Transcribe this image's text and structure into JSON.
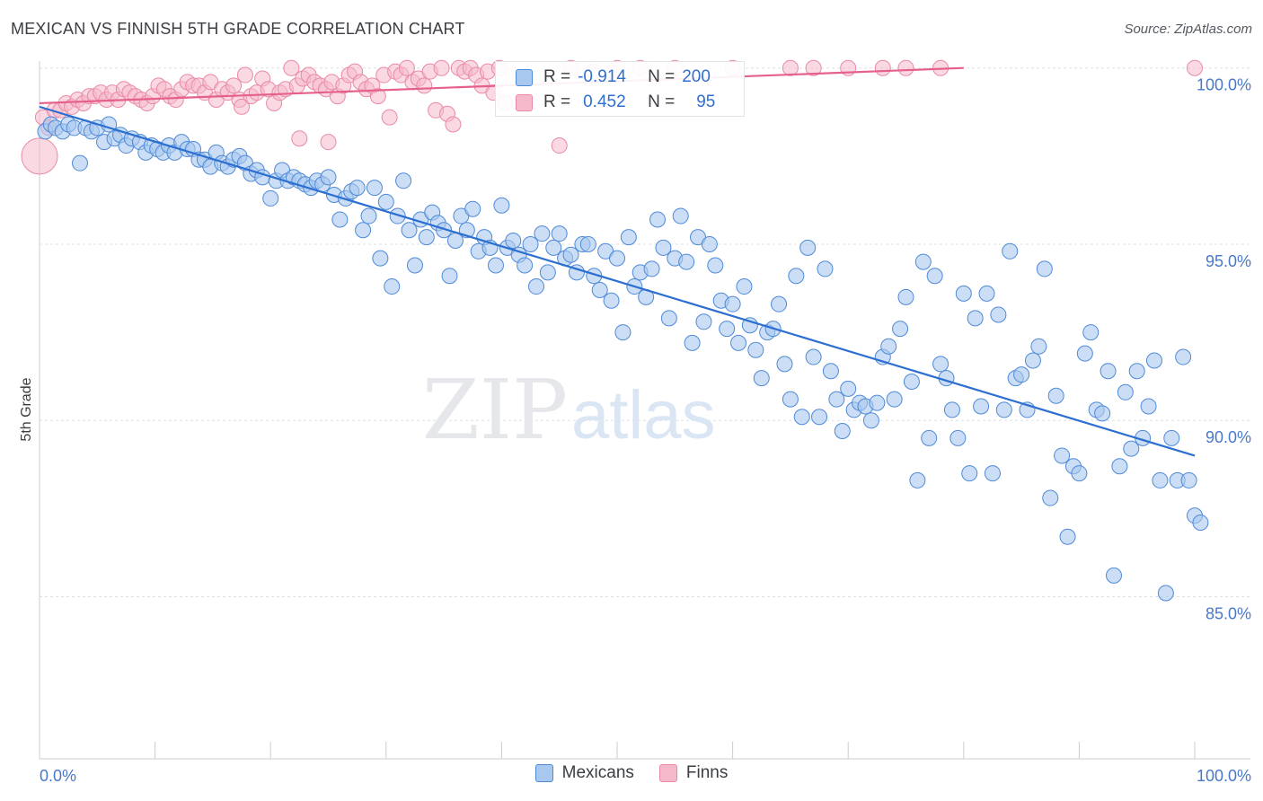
{
  "title": "MEXICAN VS FINNISH 5TH GRADE CORRELATION CHART",
  "source": "Source: ZipAtlas.com",
  "watermark": {
    "zip": "ZIP",
    "atlas": "atlas"
  },
  "colors": {
    "mexicans_fill": "#a9c8ef",
    "mexicans_stroke": "#4f8ad8",
    "mexicans_line": "#2c6fd0",
    "finns_fill": "#f6b9cb",
    "finns_stroke": "#e98aa6",
    "finns_line": "#e5608a",
    "tick_text": "#4a78c9",
    "grid": "#dde0e6"
  },
  "legend_box": {
    "rows": [
      {
        "series": "Mexicans",
        "r_label": "R =",
        "r_value": "-0.914",
        "n_label": "N =",
        "n_value": "200"
      },
      {
        "series": "Finns",
        "r_label": "R =",
        "r_value": "0.452",
        "n_label": "N =",
        "n_value": "95"
      }
    ]
  },
  "legend_bottom": [
    "Mexicans",
    "Finns"
  ],
  "chart_data": {
    "type": "scatter",
    "title": "MEXICAN VS FINNISH 5TH GRADE CORRELATION CHART",
    "xlabel": "",
    "ylabel": "5th Grade",
    "xlim": [
      0,
      100
    ],
    "ylim": [
      80.4,
      100.4
    ],
    "x_tick_labels": [
      "0.0%",
      "100.0%"
    ],
    "y_ticks": [
      100,
      95,
      90,
      85
    ],
    "y_tick_labels": [
      "100.0%",
      "95.0%",
      "90.0%",
      "85.0%"
    ],
    "grid": "horizontal dashed",
    "legend_placement": "bottom",
    "series": [
      {
        "name": "Mexicans",
        "r": -0.914,
        "n": 200,
        "trend": {
          "x": [
            0,
            100
          ],
          "y": [
            98.9,
            89.0
          ]
        },
        "points": [
          [
            0.5,
            98.2
          ],
          [
            1.0,
            98.4
          ],
          [
            1.4,
            98.3
          ],
          [
            2.0,
            98.2
          ],
          [
            2.5,
            98.4
          ],
          [
            3.0,
            98.3
          ],
          [
            3.5,
            97.3
          ],
          [
            4.0,
            98.3
          ],
          [
            4.5,
            98.2
          ],
          [
            5.0,
            98.3
          ],
          [
            5.6,
            97.9
          ],
          [
            6.0,
            98.4
          ],
          [
            6.5,
            98.0
          ],
          [
            7.0,
            98.1
          ],
          [
            7.5,
            97.8
          ],
          [
            8.0,
            98.0
          ],
          [
            8.7,
            97.9
          ],
          [
            9.2,
            97.6
          ],
          [
            9.7,
            97.8
          ],
          [
            10.2,
            97.7
          ],
          [
            10.7,
            97.6
          ],
          [
            11.2,
            97.8
          ],
          [
            11.7,
            97.6
          ],
          [
            12.3,
            97.9
          ],
          [
            12.8,
            97.7
          ],
          [
            13.3,
            97.7
          ],
          [
            13.8,
            97.4
          ],
          [
            14.3,
            97.4
          ],
          [
            14.8,
            97.2
          ],
          [
            15.3,
            97.6
          ],
          [
            15.8,
            97.3
          ],
          [
            16.3,
            97.2
          ],
          [
            16.8,
            97.4
          ],
          [
            17.3,
            97.5
          ],
          [
            17.8,
            97.3
          ],
          [
            18.3,
            97.0
          ],
          [
            18.8,
            97.1
          ],
          [
            19.3,
            96.9
          ],
          [
            20.0,
            96.3
          ],
          [
            20.5,
            96.8
          ],
          [
            21.0,
            97.1
          ],
          [
            21.5,
            96.8
          ],
          [
            22.0,
            96.9
          ],
          [
            22.5,
            96.8
          ],
          [
            23.0,
            96.7
          ],
          [
            23.5,
            96.6
          ],
          [
            24.0,
            96.8
          ],
          [
            24.5,
            96.7
          ],
          [
            25.0,
            96.9
          ],
          [
            25.5,
            96.4
          ],
          [
            26.0,
            95.7
          ],
          [
            26.5,
            96.3
          ],
          [
            27.0,
            96.5
          ],
          [
            27.5,
            96.6
          ],
          [
            28.0,
            95.4
          ],
          [
            28.5,
            95.8
          ],
          [
            29.0,
            96.6
          ],
          [
            29.5,
            94.6
          ],
          [
            30.0,
            96.2
          ],
          [
            30.5,
            93.8
          ],
          [
            31.0,
            95.8
          ],
          [
            31.5,
            96.8
          ],
          [
            32.0,
            95.4
          ],
          [
            32.5,
            94.4
          ],
          [
            33.0,
            95.7
          ],
          [
            33.5,
            95.2
          ],
          [
            34.0,
            95.9
          ],
          [
            34.5,
            95.6
          ],
          [
            35.0,
            95.4
          ],
          [
            35.5,
            94.1
          ],
          [
            36.0,
            95.1
          ],
          [
            36.5,
            95.8
          ],
          [
            37.0,
            95.4
          ],
          [
            37.5,
            96.0
          ],
          [
            38.0,
            94.8
          ],
          [
            38.5,
            95.2
          ],
          [
            39.0,
            94.9
          ],
          [
            39.5,
            94.4
          ],
          [
            40.0,
            96.1
          ],
          [
            40.5,
            94.9
          ],
          [
            41.0,
            95.1
          ],
          [
            41.5,
            94.7
          ],
          [
            42.0,
            94.4
          ],
          [
            42.5,
            95.0
          ],
          [
            43.0,
            93.8
          ],
          [
            43.5,
            95.3
          ],
          [
            44.0,
            94.2
          ],
          [
            44.5,
            94.9
          ],
          [
            45.0,
            95.3
          ],
          [
            45.5,
            94.6
          ],
          [
            46.0,
            94.7
          ],
          [
            46.5,
            94.2
          ],
          [
            47.0,
            95.0
          ],
          [
            47.5,
            95.0
          ],
          [
            48.0,
            94.1
          ],
          [
            48.5,
            93.7
          ],
          [
            49.0,
            94.8
          ],
          [
            49.5,
            93.4
          ],
          [
            50.0,
            94.6
          ],
          [
            50.5,
            92.5
          ],
          [
            51.0,
            95.2
          ],
          [
            51.5,
            93.8
          ],
          [
            52.0,
            94.2
          ],
          [
            52.5,
            93.5
          ],
          [
            53.0,
            94.3
          ],
          [
            53.5,
            95.7
          ],
          [
            54.0,
            94.9
          ],
          [
            54.5,
            92.9
          ],
          [
            55.0,
            94.6
          ],
          [
            55.5,
            95.8
          ],
          [
            56.0,
            94.5
          ],
          [
            56.5,
            92.2
          ],
          [
            57.0,
            95.2
          ],
          [
            57.5,
            92.8
          ],
          [
            58.0,
            95.0
          ],
          [
            58.5,
            94.4
          ],
          [
            59.0,
            93.4
          ],
          [
            59.5,
            92.6
          ],
          [
            60.0,
            93.3
          ],
          [
            60.5,
            92.2
          ],
          [
            61.0,
            93.8
          ],
          [
            61.5,
            92.7
          ],
          [
            62.0,
            92.0
          ],
          [
            62.5,
            91.2
          ],
          [
            63.0,
            92.5
          ],
          [
            63.5,
            92.6
          ],
          [
            64.0,
            93.3
          ],
          [
            64.5,
            91.6
          ],
          [
            65.0,
            90.6
          ],
          [
            65.5,
            94.1
          ],
          [
            66.0,
            90.1
          ],
          [
            66.5,
            94.9
          ],
          [
            67.0,
            91.8
          ],
          [
            67.5,
            90.1
          ],
          [
            68.0,
            94.3
          ],
          [
            68.5,
            91.4
          ],
          [
            69.0,
            90.6
          ],
          [
            69.5,
            89.7
          ],
          [
            70.0,
            90.9
          ],
          [
            70.5,
            90.3
          ],
          [
            71.0,
            90.5
          ],
          [
            71.5,
            90.4
          ],
          [
            72.0,
            90.0
          ],
          [
            72.5,
            90.5
          ],
          [
            73.0,
            91.8
          ],
          [
            73.5,
            92.1
          ],
          [
            74.0,
            90.6
          ],
          [
            74.5,
            92.6
          ],
          [
            75.0,
            93.5
          ],
          [
            75.5,
            91.1
          ],
          [
            76.0,
            88.3
          ],
          [
            76.5,
            94.5
          ],
          [
            77.0,
            89.5
          ],
          [
            77.5,
            94.1
          ],
          [
            78.0,
            91.6
          ],
          [
            78.5,
            91.2
          ],
          [
            79.0,
            90.3
          ],
          [
            79.5,
            89.5
          ],
          [
            80.0,
            93.6
          ],
          [
            80.5,
            88.5
          ],
          [
            81.0,
            92.9
          ],
          [
            81.5,
            90.4
          ],
          [
            82.0,
            93.6
          ],
          [
            82.5,
            88.5
          ],
          [
            83.0,
            93.0
          ],
          [
            83.5,
            90.3
          ],
          [
            84.0,
            94.8
          ],
          [
            84.5,
            91.2
          ],
          [
            85.0,
            91.3
          ],
          [
            85.5,
            90.3
          ],
          [
            86.0,
            91.7
          ],
          [
            86.5,
            92.1
          ],
          [
            87.0,
            94.3
          ],
          [
            87.5,
            87.8
          ],
          [
            88.0,
            90.7
          ],
          [
            88.5,
            89.0
          ],
          [
            89.0,
            86.7
          ],
          [
            89.5,
            88.7
          ],
          [
            90.0,
            88.5
          ],
          [
            90.5,
            91.9
          ],
          [
            91.0,
            92.5
          ],
          [
            91.5,
            90.3
          ],
          [
            92.0,
            90.2
          ],
          [
            92.5,
            91.4
          ],
          [
            93.0,
            85.6
          ],
          [
            93.5,
            88.7
          ],
          [
            94.0,
            90.8
          ],
          [
            94.5,
            89.2
          ],
          [
            95.0,
            91.4
          ],
          [
            95.5,
            89.5
          ],
          [
            96.0,
            90.4
          ],
          [
            96.5,
            91.7
          ],
          [
            97.0,
            88.3
          ],
          [
            97.5,
            85.1
          ],
          [
            98.0,
            89.5
          ],
          [
            98.5,
            88.3
          ],
          [
            99.0,
            91.8
          ],
          [
            99.5,
            88.3
          ],
          [
            100.0,
            87.3
          ],
          [
            100.5,
            87.1
          ]
        ]
      },
      {
        "name": "Finns",
        "r": 0.452,
        "n": 95,
        "trend": {
          "x": [
            0,
            80
          ],
          "y": [
            99.0,
            100.0
          ]
        },
        "points": [
          [
            0.3,
            98.6
          ],
          [
            0.8,
            98.3
          ],
          [
            1.3,
            98.8
          ],
          [
            1.8,
            98.8
          ],
          [
            2.3,
            99.0
          ],
          [
            2.8,
            98.9
          ],
          [
            3.3,
            99.1
          ],
          [
            3.8,
            99.0
          ],
          [
            4.3,
            99.2
          ],
          [
            4.8,
            99.2
          ],
          [
            5.3,
            99.3
          ],
          [
            5.8,
            99.1
          ],
          [
            6.3,
            99.3
          ],
          [
            6.8,
            99.1
          ],
          [
            7.3,
            99.4
          ],
          [
            7.8,
            99.3
          ],
          [
            8.3,
            99.2
          ],
          [
            8.8,
            99.1
          ],
          [
            9.3,
            99.0
          ],
          [
            9.8,
            99.2
          ],
          [
            10.3,
            99.5
          ],
          [
            10.8,
            99.4
          ],
          [
            11.3,
            99.2
          ],
          [
            11.8,
            99.1
          ],
          [
            12.3,
            99.4
          ],
          [
            12.8,
            99.6
          ],
          [
            13.3,
            99.5
          ],
          [
            13.8,
            99.5
          ],
          [
            14.3,
            99.3
          ],
          [
            14.8,
            99.6
          ],
          [
            15.3,
            99.1
          ],
          [
            15.8,
            99.4
          ],
          [
            16.3,
            99.3
          ],
          [
            16.8,
            99.5
          ],
          [
            17.3,
            99.1
          ],
          [
            17.8,
            99.8
          ],
          [
            18.3,
            99.2
          ],
          [
            18.8,
            99.3
          ],
          [
            19.3,
            99.7
          ],
          [
            19.8,
            99.4
          ],
          [
            20.3,
            99.0
          ],
          [
            20.8,
            99.3
          ],
          [
            21.3,
            99.4
          ],
          [
            21.8,
            100.0
          ],
          [
            22.3,
            99.5
          ],
          [
            22.8,
            99.7
          ],
          [
            23.3,
            99.8
          ],
          [
            23.8,
            99.6
          ],
          [
            24.3,
            99.5
          ],
          [
            24.8,
            99.4
          ],
          [
            25.3,
            99.6
          ],
          [
            25.8,
            99.2
          ],
          [
            26.3,
            99.5
          ],
          [
            26.8,
            99.8
          ],
          [
            27.3,
            99.9
          ],
          [
            27.8,
            99.6
          ],
          [
            28.3,
            99.4
          ],
          [
            28.8,
            99.5
          ],
          [
            29.3,
            99.2
          ],
          [
            29.8,
            99.8
          ],
          [
            30.3,
            98.6
          ],
          [
            30.8,
            99.9
          ],
          [
            31.3,
            99.8
          ],
          [
            31.8,
            100.0
          ],
          [
            32.3,
            99.6
          ],
          [
            32.8,
            99.7
          ],
          [
            33.3,
            99.5
          ],
          [
            33.8,
            99.9
          ],
          [
            34.3,
            98.8
          ],
          [
            34.8,
            100.0
          ],
          [
            35.3,
            98.7
          ],
          [
            35.8,
            98.4
          ],
          [
            36.3,
            100.0
          ],
          [
            36.8,
            99.9
          ],
          [
            37.3,
            100.0
          ],
          [
            37.8,
            99.8
          ],
          [
            38.3,
            99.5
          ],
          [
            38.8,
            99.9
          ],
          [
            39.3,
            99.3
          ],
          [
            39.8,
            100.0
          ],
          [
            40.3,
            99.0
          ],
          [
            45.0,
            97.8
          ],
          [
            46.0,
            100.0
          ],
          [
            48.0,
            99.9
          ],
          [
            50.0,
            100.0
          ],
          [
            52.0,
            100.0
          ],
          [
            55.0,
            100.0
          ],
          [
            60.0,
            100.0
          ],
          [
            65.0,
            100.0
          ],
          [
            67.0,
            100.0
          ],
          [
            70.0,
            100.0
          ],
          [
            73.0,
            100.0
          ],
          [
            75.0,
            100.0
          ],
          [
            78.0,
            100.0
          ],
          [
            100.0,
            100.0
          ]
        ],
        "outliers": [
          [
            0.0,
            97.5
          ],
          [
            25.0,
            97.9
          ],
          [
            22.5,
            98.0
          ],
          [
            17.5,
            98.9
          ]
        ]
      }
    ]
  }
}
